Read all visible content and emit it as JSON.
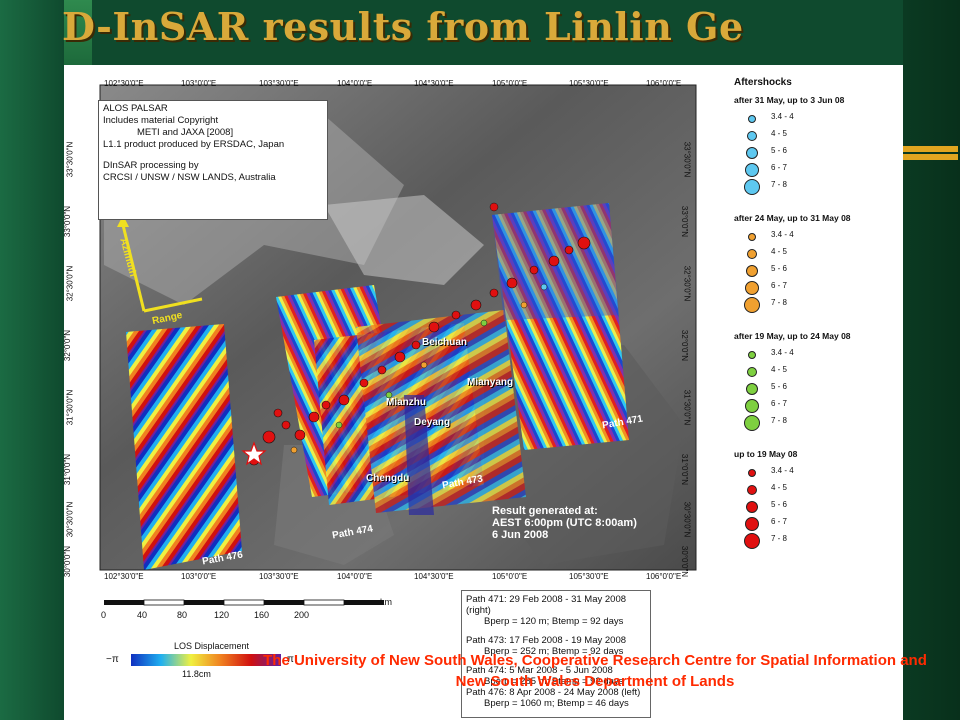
{
  "slide": {
    "title": "D-InSAR results from Linlin Ge"
  },
  "colors": {
    "title": "#d9a93a",
    "accent": "#e2a520",
    "caption": "#ff2a00",
    "background": "#0f4a2e"
  },
  "map": {
    "lon_ticks": [
      "102°30'0\"E",
      "103°0'0\"E",
      "103°30'0\"E",
      "104°0'0\"E",
      "104°30'0\"E",
      "105°0'0\"E",
      "105°30'0\"E",
      "106°0'0\"E"
    ],
    "lat_ticks": [
      "33°30'0\"N",
      "33°0'0\"N",
      "32°30'0\"N",
      "32°0'0\"N",
      "31°30'0\"N",
      "31°0'0\"N",
      "30°30'0\"N",
      "30°0'0\"N"
    ],
    "info_lines": [
      "ALOS PALSAR",
      "Includes material Copyright",
      "METI and JAXA [2008]",
      "L1.1 product produced by ERSDAC, Japan",
      "",
      "DInSAR processing by",
      "CRCSI / UNSW / NSW LANDS, Australia"
    ],
    "azimuth_label": "Azimuth",
    "range_label": "Range",
    "places": [
      "Beichuan",
      "Mianyang",
      "Mianzhu",
      "Deyang",
      "Chengdu"
    ],
    "path_labels": [
      "Path 471",
      "Path 473",
      "Path 474",
      "Path 476"
    ],
    "result": [
      "Result generated at:",
      "AEST 6:00pm (UTC 8:00am)",
      "6 Jun 2008"
    ]
  },
  "scale": {
    "ticks": [
      "0",
      "40",
      "80",
      "120",
      "160",
      "200"
    ],
    "unit": "km"
  },
  "los": {
    "title": "LOS Displacement",
    "min": "−π",
    "max": "π",
    "value": "11.8cm"
  },
  "legend": {
    "title": "Aftershocks",
    "groups": [
      {
        "title": "after 31 May, up to 3 Jun 08",
        "color": "#5ec8f0",
        "items": [
          "3.4 - 4",
          "4 - 5",
          "5 - 6",
          "6 - 7",
          "7 - 8"
        ]
      },
      {
        "title": "after 24 May, up to 31 May 08",
        "color": "#f0a030",
        "items": [
          "3.4 - 4",
          "4 - 5",
          "5 - 6",
          "6 - 7",
          "7 - 8"
        ]
      },
      {
        "title": "after 19 May, up to 24 May 08",
        "color": "#7ed040",
        "items": [
          "3.4 - 4",
          "4 - 5",
          "5 - 6",
          "6 - 7",
          "7 - 8"
        ]
      },
      {
        "title": "up to 19 May 08",
        "color": "#e01010",
        "items": [
          "3.4 - 4",
          "4 - 5",
          "5 - 6",
          "6 - 7",
          "7 - 8"
        ]
      }
    ]
  },
  "paths_info": {
    "lines": [
      "Path 471: 29 Feb 2008 - 31 May 2008 (right)",
      "Bperp = 120 m; Btemp = 92 days",
      "Path 473: 17 Feb 2008 - 19 May 2008",
      "Bperp = 252 m; Btemp = 92 days",
      "Path 474: 5 Mar 2008 - 5 Jun 2008",
      "Bperp = 285 m; Btemp = 92 days",
      "Path 476: 8 Apr 2008 - 24 May 2008 (left)",
      "Bperp = 1060 m; Btemp = 46 days"
    ]
  },
  "caption": "The University of New South Wales, Cooperative Research Centre for Spatial Information and New South Wales Department of Lands"
}
